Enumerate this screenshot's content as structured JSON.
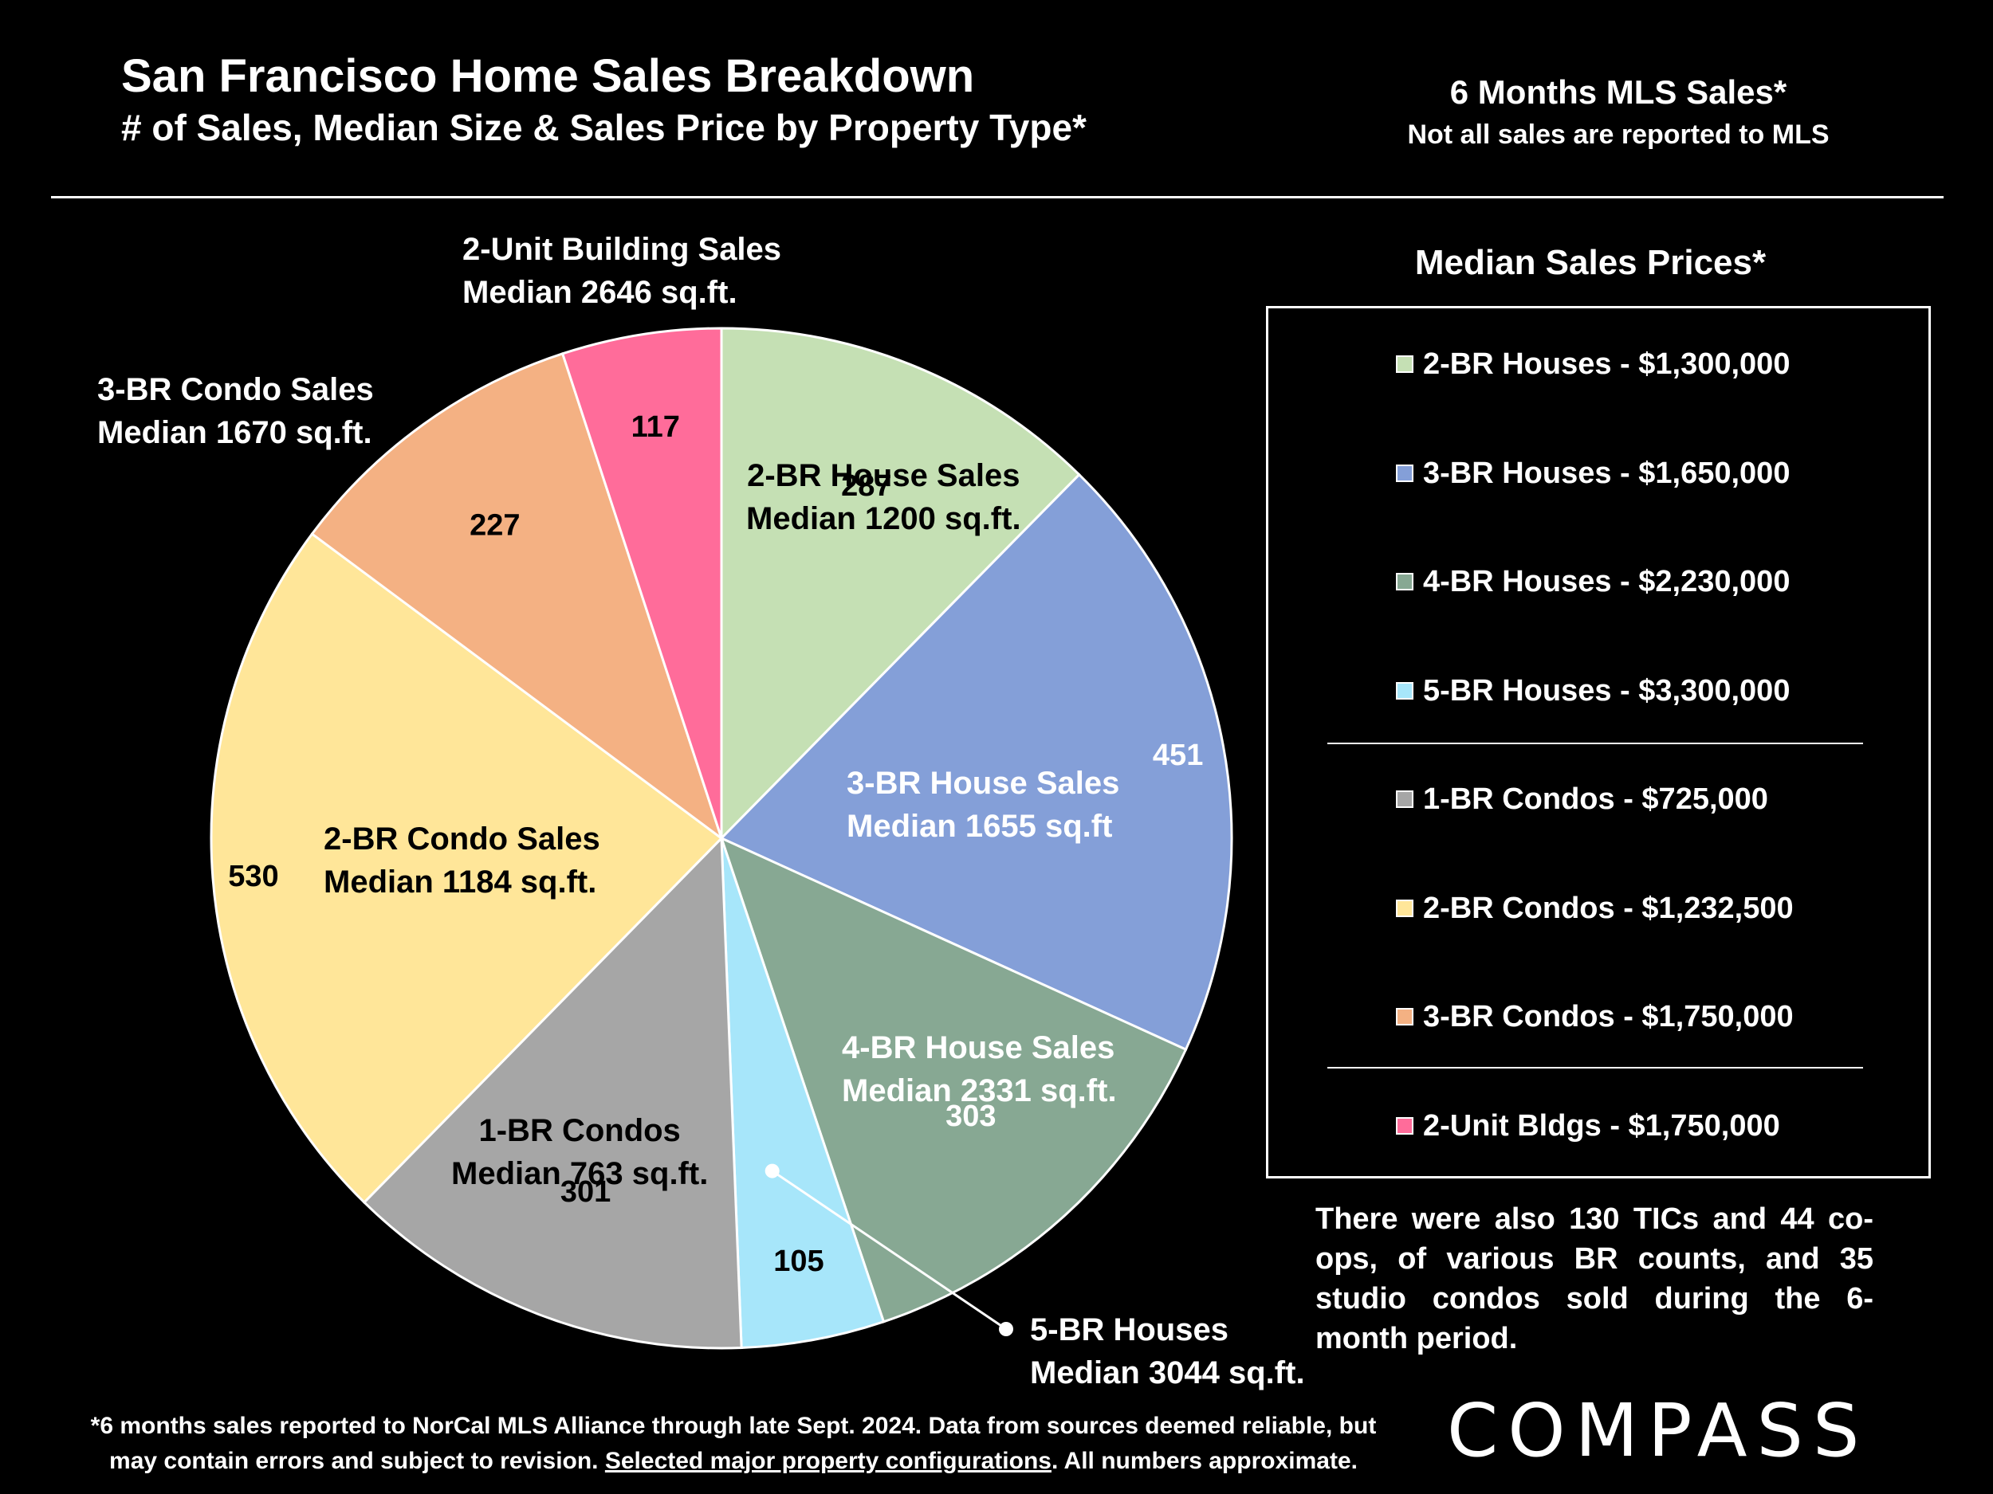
{
  "title": "San Francisco Home Sales Breakdown",
  "subtitle": "# of Sales, Median Size & Sales Price by Property Type*",
  "header_right": {
    "line1": "6 Months MLS Sales*",
    "line2": "Not all sales are reported to MLS"
  },
  "chart_data": {
    "type": "pie",
    "title": "San Francisco Home Sales Breakdown",
    "slices": [
      {
        "name": "2-BR House Sales",
        "median": "Median 1200 sq.ft.",
        "value": 287,
        "value_label": "287",
        "color": "#C5E0B4"
      },
      {
        "name": "3-BR House Sales",
        "median": "Median 1655 sq.ft",
        "value": 451,
        "value_label": "451",
        "color": "#849FD8"
      },
      {
        "name": "4-BR House Sales",
        "median": "Median 2331 sq.ft.",
        "value": 303,
        "value_label": "303",
        "color": "#87A893"
      },
      {
        "name": "5-BR Houses",
        "median": "Median 3044 sq.ft.",
        "value": 105,
        "value_label": "105",
        "color": "#A7E6FA"
      },
      {
        "name": "1-BR Condos",
        "median": "Median 763 sq.ft.",
        "value": 301,
        "value_label": "301",
        "color": "#A6A6A6"
      },
      {
        "name": "2-BR Condo Sales",
        "median": "Median 1184 sq.ft.",
        "value": 530,
        "value_label": "530",
        "color": "#FFE699"
      },
      {
        "name": "3-BR Condo Sales",
        "median": "Median 1670 sq.ft.",
        "value": 227,
        "value_label": "227",
        "color": "#F4B183"
      },
      {
        "name": "2-Unit Building Sales",
        "median": "Median 2646 sq.ft.",
        "value": 117,
        "value_label": "117",
        "color": "#FF6C9A"
      }
    ]
  },
  "legend": {
    "heading": "Median Sales Prices*",
    "items": [
      {
        "label": "2-BR Houses - $1,300,000",
        "color": "#C5E0B4"
      },
      {
        "label": "3-BR Houses - $1,650,000",
        "color": "#849FD8"
      },
      {
        "label": "4-BR Houses - $2,230,000",
        "color": "#87A893"
      },
      {
        "label": "5-BR Houses - $3,300,000",
        "color": "#A7E6FA"
      },
      {
        "label": "1-BR Condos - $725,000",
        "color": "#A6A6A6"
      },
      {
        "label": "2-BR Condos - $1,232,500",
        "color": "#FFE699"
      },
      {
        "label": "3-BR Condos - $1,750,000",
        "color": "#F4B183"
      },
      {
        "label": "2-Unit Bldgs - $1,750,000",
        "color": "#FF6C9A"
      }
    ]
  },
  "note": "There were also 130 TICs and 44 co-ops, of various BR counts, and 35 studio condos sold during the 6-month period.",
  "footer": {
    "line1": "*6 months sales reported to NorCal MLS Alliance through late Sept. 2024. Data from sources deemed reliable, but",
    "line2_pre": "may contain errors and subject to revision. ",
    "line2_link": "Selected major property configurations",
    "line2_post": ". All numbers approximate."
  },
  "logo": "COMPASS"
}
